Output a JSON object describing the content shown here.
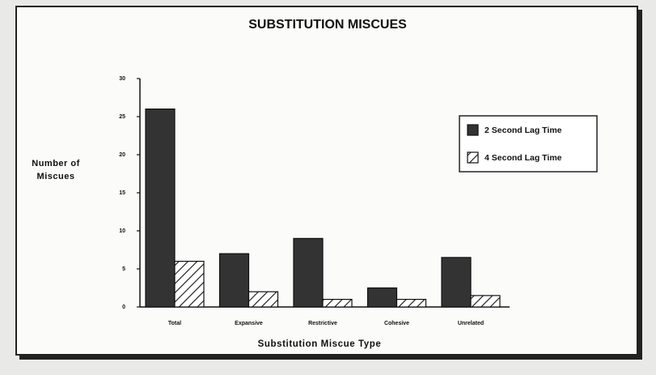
{
  "chart_data": {
    "type": "bar",
    "title": "SUBSTITUTION MISCUES",
    "x_label": "Substitution Miscue Type",
    "y_label": "Number of Miscues",
    "categories": [
      "Total",
      "Expansive",
      "Restrictive",
      "Cohesive",
      "Unrelated"
    ],
    "series": [
      {
        "name": "2 Second Lag Time",
        "color": "#333333",
        "values": [
          26,
          7,
          9,
          2.5,
          6.5
        ]
      },
      {
        "name": "4 Second Lag Time",
        "color": "#ffffff",
        "hatch": true,
        "values": [
          6,
          2,
          1,
          1,
          1.5
        ]
      }
    ],
    "ylim": [
      0,
      30
    ],
    "yticks": [
      0,
      5,
      10,
      15,
      20,
      25,
      30
    ],
    "grid": false,
    "legend": "right"
  }
}
